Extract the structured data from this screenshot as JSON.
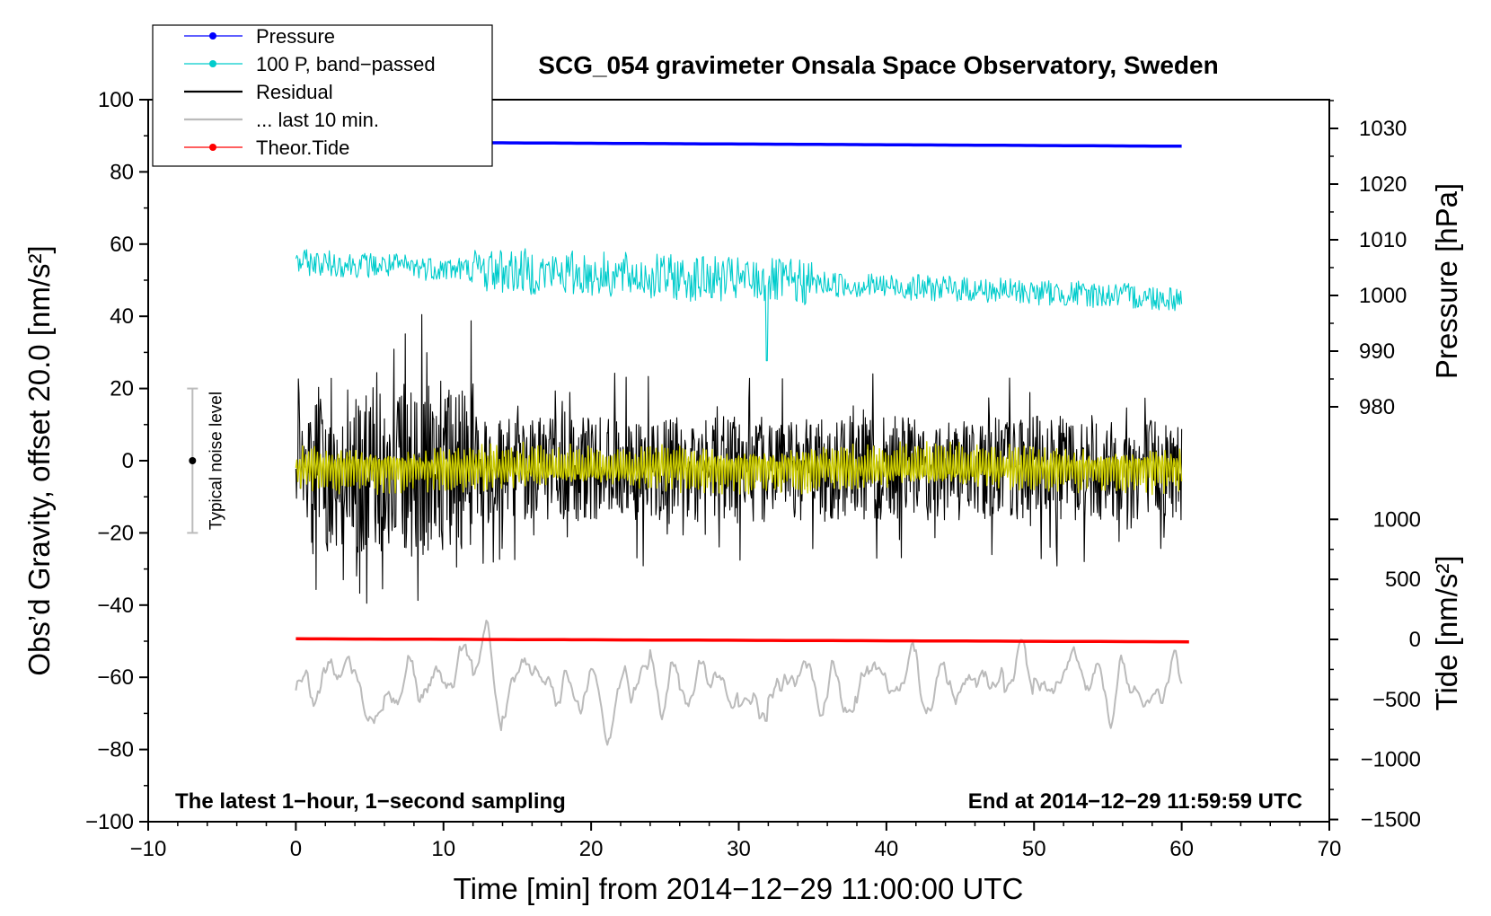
{
  "chart_data": {
    "type": "line",
    "title": "SCG_054 gravimeter Onsala Space Observatory, Sweden",
    "xlabel": "Time [min] from 2014−12−29 11:00:00 UTC",
    "ylabel_left": "Obs’d Gravity, offset 20.0 [nm/s²]",
    "ylabel_right_pressure": "Pressure [hPa]",
    "ylabel_right_tide": "Tide [nm/s²]",
    "xlim": [
      -10,
      70
    ],
    "ylim_left": [
      -100,
      100
    ],
    "x_ticks": [
      "−10",
      "0",
      "10",
      "20",
      "30",
      "40",
      "50",
      "60",
      "70"
    ],
    "y_ticks_left": [
      "100",
      "80",
      "60",
      "40",
      "20",
      "0",
      "−20",
      "−40",
      "−60",
      "−80",
      "−100"
    ],
    "pressure_ticks": [
      "1030",
      "1020",
      "1010",
      "1000",
      "990",
      "980"
    ],
    "tide_ticks": [
      "1000",
      "500",
      "0",
      "−500",
      "−1000",
      "−1500"
    ],
    "annotation_left": "The latest 1−hour, 1−second sampling",
    "annotation_right": "End at 2014−12−29 11:59:59 UTC",
    "noise_bar": {
      "label": "Typical noise level",
      "x": -7,
      "center": 0,
      "low": -20,
      "high": 20
    },
    "legend": [
      {
        "label": "Pressure",
        "color": "#0000ff",
        "marker": true
      },
      {
        "label": "100 P, band−passed",
        "color": "#00cccc",
        "marker": true
      },
      {
        "label": "Residual",
        "color": "#000000",
        "marker": false
      },
      {
        "label": "... last 10 min.",
        "color": "#bbbbbb",
        "marker": false
      },
      {
        "label": "Theor.Tide",
        "color": "#ff0000",
        "marker": true
      }
    ],
    "series": [
      {
        "name": "Pressure",
        "color": "#0000ff",
        "axis": "pressure_hPa",
        "x_range": [
          0,
          60
        ],
        "start": 1027.6,
        "end": 1026.8
      },
      {
        "name": "100 P, band−passed",
        "color": "#00cccc",
        "axis": "left",
        "x_range": [
          0,
          60
        ],
        "level_start": 55,
        "level_end": 45,
        "amplitude": 4
      },
      {
        "name": "Residual",
        "color": "#000000",
        "axis": "left",
        "x_range": [
          0,
          60
        ],
        "level": -2,
        "amplitude": 18
      },
      {
        "name": "Residual (smoothed)",
        "color": "#cccc00",
        "axis": "left",
        "x_range": [
          0,
          60
        ],
        "level": -2,
        "amplitude": 5
      },
      {
        "name": "... last 10 min.",
        "color": "#bbbbbb",
        "axis": "left",
        "x_range": [
          0,
          60
        ],
        "level": -62,
        "amplitude": 10
      },
      {
        "name": "Theor.Tide",
        "color": "#ff0000",
        "axis": "tide_nms2",
        "x_range": [
          0,
          60.5
        ],
        "start": 5,
        "end": -20
      }
    ]
  }
}
